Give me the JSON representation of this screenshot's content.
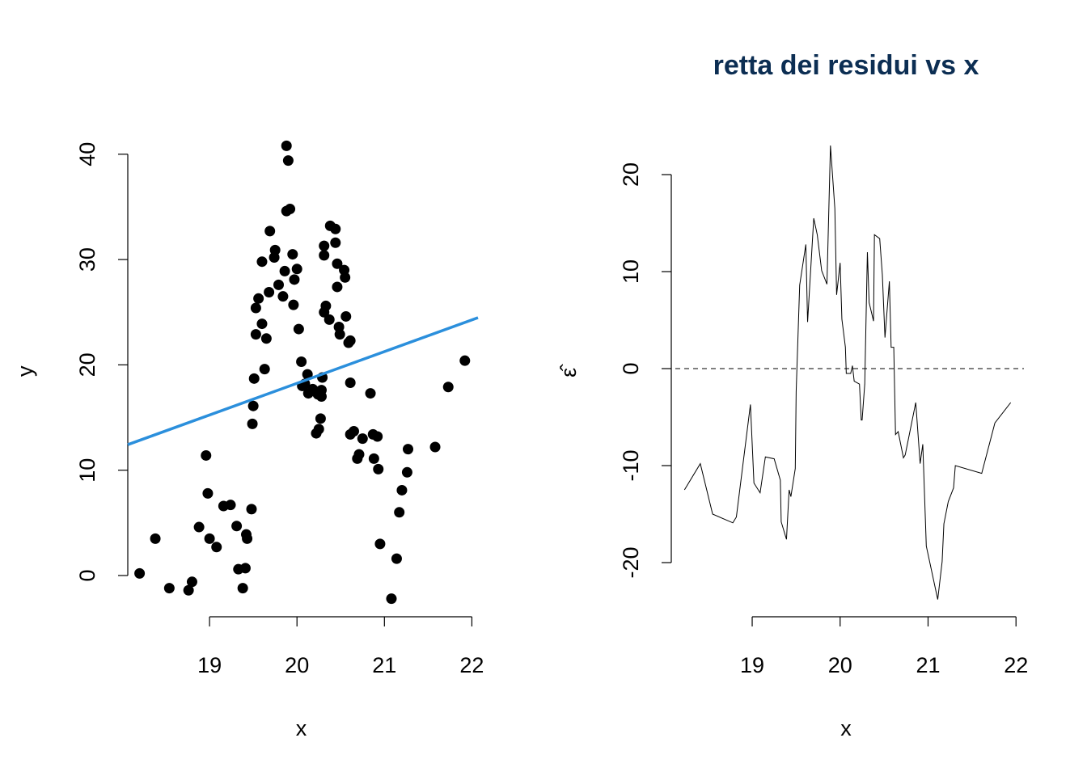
{
  "chart_data": [
    {
      "type": "scatter",
      "xlabel": "x",
      "ylabel": "y",
      "color": "#000000",
      "x": [
        18.2,
        18.38,
        18.54,
        18.76,
        18.8,
        18.88,
        18.96,
        18.98,
        19.0,
        19.08,
        19.16,
        19.24,
        19.31,
        19.33,
        19.38,
        19.41,
        19.42,
        19.43,
        19.48,
        19.49,
        19.5,
        19.51,
        19.53,
        19.53,
        19.56,
        19.6,
        19.6,
        19.63,
        19.65,
        19.68,
        19.69,
        19.74,
        19.75,
        19.79,
        19.84,
        19.86,
        19.88,
        19.88,
        19.9,
        19.92,
        19.95,
        19.96,
        19.97,
        20.0,
        20.02,
        20.05,
        20.06,
        20.09,
        20.12,
        20.13,
        20.18,
        20.22,
        20.24,
        20.25,
        20.27,
        20.28,
        20.28,
        20.29,
        20.31,
        20.31,
        20.31,
        20.33,
        20.37,
        20.38,
        20.44,
        20.44,
        20.46,
        20.46,
        20.48,
        20.49,
        20.54,
        20.55,
        20.56,
        20.59,
        20.61,
        20.61,
        20.61,
        20.65,
        20.69,
        20.71,
        20.75,
        20.84,
        20.87,
        20.88,
        20.92,
        20.93,
        20.95,
        21.08,
        21.14,
        21.17,
        21.2,
        21.26,
        21.27,
        21.58,
        21.73,
        21.92
      ],
      "values": [
        0.2,
        3.5,
        -1.2,
        -1.4,
        -0.6,
        4.6,
        11.4,
        7.8,
        3.5,
        2.7,
        6.6,
        6.7,
        4.7,
        0.6,
        -1.2,
        0.7,
        3.9,
        3.5,
        6.3,
        14.4,
        16.1,
        18.7,
        22.9,
        25.4,
        26.3,
        23.9,
        29.8,
        19.6,
        22.5,
        26.9,
        32.7,
        30.2,
        30.9,
        27.6,
        26.5,
        28.9,
        34.6,
        40.8,
        39.4,
        34.8,
        30.5,
        25.7,
        28.1,
        29.1,
        23.4,
        20.3,
        18.0,
        18.2,
        19.1,
        17.3,
        17.7,
        13.5,
        17.2,
        13.9,
        14.9,
        17.6,
        17.0,
        18.8,
        25.0,
        30.4,
        31.3,
        25.6,
        24.3,
        33.2,
        32.9,
        31.6,
        29.6,
        27.4,
        23.6,
        22.9,
        29.0,
        28.3,
        24.6,
        22.1,
        22.3,
        18.3,
        13.4,
        13.7,
        11.1,
        11.5,
        13.0,
        17.3,
        13.4,
        11.1,
        13.2,
        10.1,
        3.0,
        -2.2,
        1.6,
        6.0,
        8.1,
        9.8,
        12.0,
        12.2,
        17.9,
        20.4
      ],
      "fit_line": {
        "intercept": -41.95,
        "slope": 3.01,
        "color": "#2b8fdc"
      },
      "xlim": [
        18.065,
        22.07
      ],
      "ylim": [
        -3.9,
        42.7
      ],
      "xticks": [
        19,
        20,
        21,
        22
      ],
      "yticks": [
        0,
        10,
        20,
        30,
        40
      ]
    },
    {
      "type": "line",
      "title": "retta dei residui vs x",
      "xlabel": "x",
      "ylabel": "ε̂",
      "color": "#000000",
      "x": [
        18.23,
        18.41,
        18.55,
        18.78,
        18.82,
        18.98,
        19.02,
        19.09,
        19.15,
        19.25,
        19.32,
        19.33,
        19.39,
        19.42,
        19.44,
        19.49,
        19.5,
        19.54,
        19.61,
        19.63,
        19.7,
        19.74,
        19.79,
        19.85,
        19.89,
        19.94,
        19.96,
        20.0,
        20.02,
        20.06,
        20.07,
        20.12,
        20.14,
        20.16,
        20.22,
        20.24,
        20.25,
        20.28,
        20.31,
        20.33,
        20.38,
        20.39,
        20.45,
        20.48,
        20.51,
        20.56,
        20.58,
        20.61,
        20.63,
        20.66,
        20.72,
        20.74,
        20.86,
        20.91,
        20.94,
        20.98,
        21.11,
        21.16,
        21.18,
        21.23,
        21.29,
        21.31,
        21.61,
        21.76,
        21.94
      ],
      "values": [
        -12.5,
        -9.8,
        -15,
        -15.9,
        -15.3,
        -3.7,
        -11.8,
        -12.8,
        -9.1,
        -9.3,
        -11.5,
        -15.8,
        -17.6,
        -12.5,
        -13.2,
        -10.3,
        -2.4,
        8.6,
        12.8,
        4.8,
        15.5,
        13.8,
        10.1,
        8.7,
        23,
        16.5,
        7.6,
        10.9,
        5.1,
        2.2,
        -0.5,
        -0.5,
        0.3,
        -1.3,
        -1.6,
        -5.3,
        -5.3,
        -1.6,
        12,
        6.8,
        4.9,
        13.8,
        13.4,
        9.7,
        3.2,
        9,
        2.2,
        2.2,
        -6.8,
        -6.5,
        -9.2,
        -8.9,
        -3.5,
        -9.8,
        -7.8,
        -18.3,
        -23.8,
        -19.9,
        -16,
        -13.7,
        -12.3,
        -10,
        -10.8,
        -5.6,
        -3.5
      ],
      "hline": 0,
      "xlim": [
        18.08,
        22.09
      ],
      "ylim": [
        -25.7,
        24.9
      ],
      "xticks": [
        19,
        20,
        21,
        22
      ],
      "yticks": [
        -20,
        -10,
        0,
        10,
        20
      ]
    }
  ]
}
